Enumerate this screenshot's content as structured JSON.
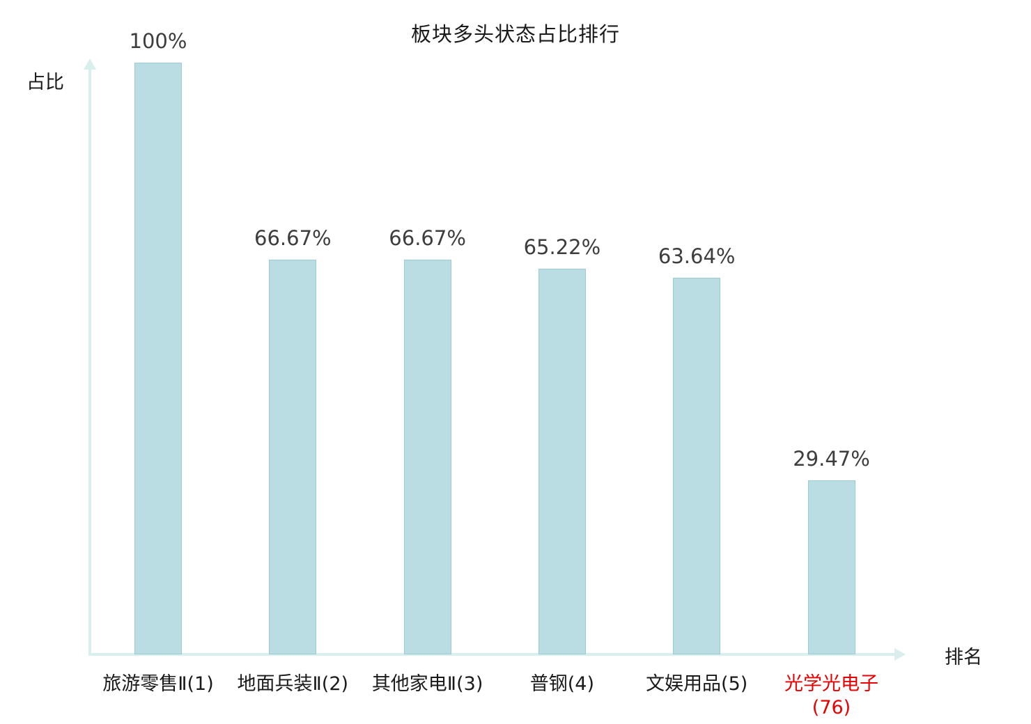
{
  "chart_data": {
    "type": "bar",
    "title": "板块多头状态占比排行",
    "ylabel": "占比",
    "xlabel": "排名",
    "categories": [
      "旅游零售Ⅱ(1)",
      "地面兵装Ⅱ(2)",
      "其他家电Ⅱ(3)",
      "普钢(4)",
      "文娱用品(5)",
      "光学光电子(76)"
    ],
    "values": [
      100,
      66.67,
      66.67,
      65.22,
      63.64,
      29.47
    ],
    "value_labels": [
      "100%",
      "66.67%",
      "66.67%",
      "65.22%",
      "63.64%",
      "29.47%"
    ],
    "ylim": [
      0,
      100
    ],
    "grid": false,
    "legend": "none",
    "bar_fill": "#b9dde2",
    "bar_border": "#9ccbd2",
    "axis_color": "#d9efee",
    "value_label_color": "#3d3d3d",
    "category_colors": [
      "#1a1a1a",
      "#1a1a1a",
      "#1a1a1a",
      "#1a1a1a",
      "#1a1a1a",
      "#e60000"
    ]
  }
}
